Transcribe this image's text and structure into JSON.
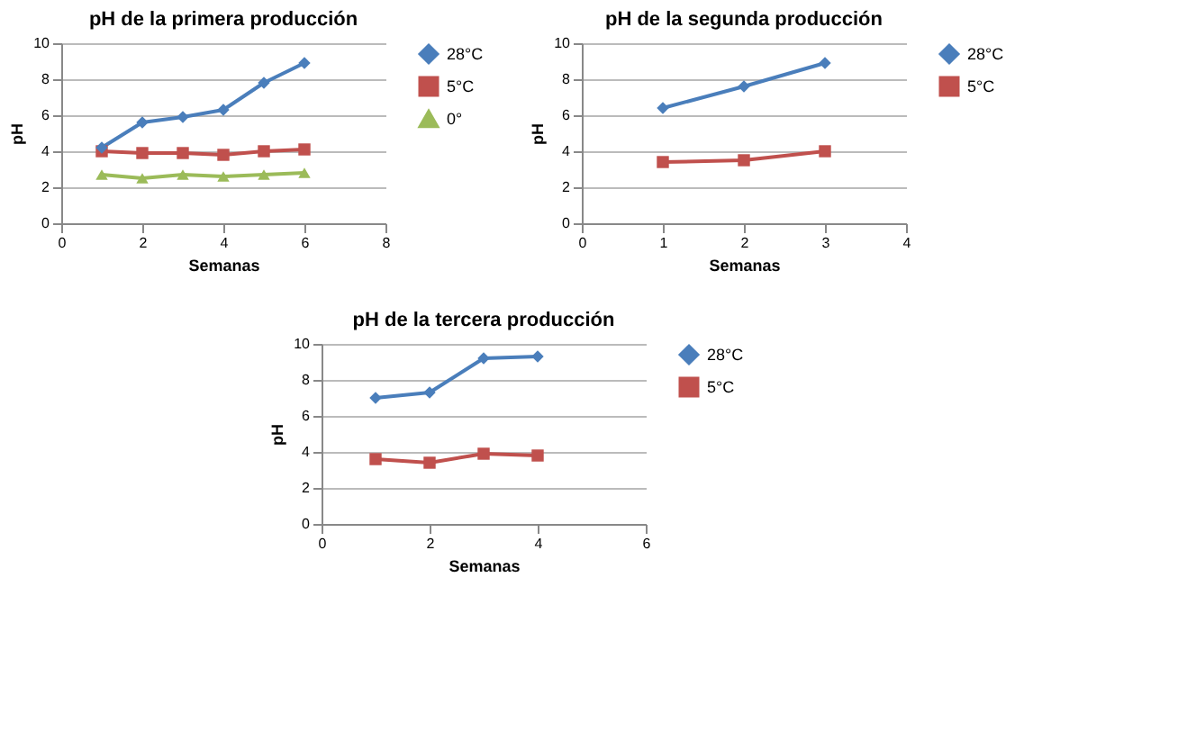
{
  "chart_data": [
    {
      "type": "line",
      "title": "pH de la primera producción",
      "xlabel": "Semanas",
      "ylabel": "pH",
      "xlim": [
        0,
        8
      ],
      "xticks": [
        0,
        2,
        4,
        6,
        8
      ],
      "ylim": [
        0,
        10
      ],
      "yticks": [
        0,
        2,
        4,
        6,
        8,
        10
      ],
      "grid": "y",
      "legend": "right",
      "series": [
        {
          "name": "28°C",
          "color": "#4a7ebb",
          "marker": "diamond",
          "x": [
            1,
            2,
            3,
            4,
            5,
            6
          ],
          "values": [
            4.2,
            5.6,
            5.9,
            6.3,
            7.8,
            8.9
          ]
        },
        {
          "name": "5°C",
          "color": "#c0504d",
          "marker": "square",
          "x": [
            1,
            2,
            3,
            4,
            5,
            6
          ],
          "values": [
            4.0,
            3.9,
            3.9,
            3.8,
            4.0,
            4.1
          ]
        },
        {
          "name": "0°",
          "color": "#9bbb59",
          "marker": "triangle",
          "x": [
            1,
            2,
            3,
            4,
            5,
            6
          ],
          "values": [
            2.7,
            2.5,
            2.7,
            2.6,
            2.7,
            2.8
          ]
        }
      ]
    },
    {
      "type": "line",
      "title": "pH de la segunda producción",
      "xlabel": "Semanas",
      "ylabel": "pH",
      "xlim": [
        0,
        4
      ],
      "xticks": [
        0,
        1,
        2,
        3,
        4
      ],
      "ylim": [
        0,
        10
      ],
      "yticks": [
        0,
        2,
        4,
        6,
        8,
        10
      ],
      "grid": "y",
      "legend": "right",
      "series": [
        {
          "name": "28°C",
          "color": "#4a7ebb",
          "marker": "diamond",
          "x": [
            1,
            2,
            3
          ],
          "values": [
            6.4,
            7.6,
            8.9
          ]
        },
        {
          "name": "5°C",
          "color": "#c0504d",
          "marker": "square",
          "x": [
            1,
            2,
            3
          ],
          "values": [
            3.4,
            3.5,
            4.0
          ]
        }
      ]
    },
    {
      "type": "line",
      "title": "pH de la tercera producción",
      "xlabel": "Semanas",
      "ylabel": "pH",
      "xlim": [
        0,
        6
      ],
      "xticks": [
        0,
        2,
        4,
        6
      ],
      "ylim": [
        0,
        10
      ],
      "yticks": [
        0,
        2,
        4,
        6,
        8,
        10
      ],
      "grid": "y",
      "legend": "right",
      "series": [
        {
          "name": "28°C",
          "color": "#4a7ebb",
          "marker": "diamond",
          "x": [
            1,
            2,
            3,
            4
          ],
          "values": [
            7.0,
            7.3,
            9.2,
            9.3
          ]
        },
        {
          "name": "5°C",
          "color": "#c0504d",
          "marker": "square",
          "x": [
            1,
            2,
            3,
            4
          ],
          "values": [
            3.6,
            3.4,
            3.9,
            3.8
          ]
        }
      ]
    }
  ]
}
